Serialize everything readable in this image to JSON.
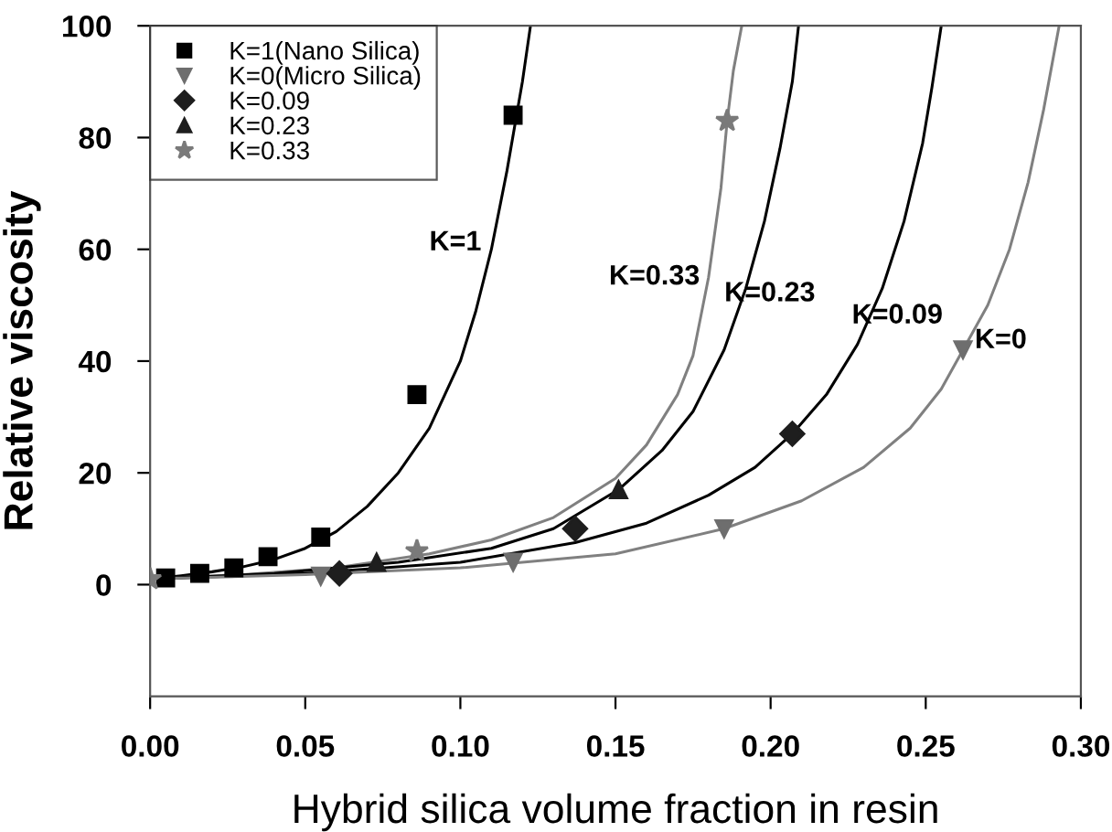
{
  "chart_data": {
    "type": "scatter",
    "xlabel": "Hybrid silica volume fraction in resin",
    "ylabel": "Relative viscosity",
    "xlim": [
      0,
      0.3
    ],
    "xticks": [
      {
        "value": 0,
        "label": "0.00"
      },
      0.05,
      {
        "value": 0.1,
        "label": "0.10"
      },
      0.15,
      {
        "value": 0.2,
        "label": "0.20"
      },
      0.25,
      {
        "value": 0.3,
        "label": "0.30"
      }
    ],
    "ylim": [
      -20,
      100
    ],
    "yticks": [
      0,
      20,
      40,
      60,
      80,
      100
    ],
    "grid": false,
    "legend": "top left",
    "series": [
      {
        "name": "K=1(Nano Silica)",
        "marker": "square",
        "color": "#000000",
        "x": [
          0.005,
          0.016,
          0.027,
          0.038,
          0.055,
          0.086,
          0.117
        ],
        "values": [
          1.2,
          2,
          3,
          5,
          8.5,
          34,
          84
        ]
      },
      {
        "name": "K=0(Micro Silica)",
        "marker": "triangle_down",
        "color": "#6e6e6e",
        "x": [
          0.055,
          0.117,
          0.185,
          0.262
        ],
        "values": [
          1.5,
          4,
          10,
          42
        ]
      },
      {
        "name": "K=0.09",
        "marker": "diamond",
        "color": "#1e1e1e",
        "x": [
          0.061,
          0.137,
          0.207
        ],
        "values": [
          2,
          10,
          27
        ]
      },
      {
        "name": "K=0.23",
        "marker": "triangle",
        "color": "#1e1e1e",
        "x": [
          0.073,
          0.151
        ],
        "values": [
          4,
          17
        ]
      },
      {
        "name": "K=0.33",
        "marker": "star",
        "color": "#7a7a7a",
        "x": [
          0,
          0.086,
          0.186
        ],
        "values": [
          1,
          6,
          83
        ]
      },
      {
        "type": "line",
        "color": "#000000",
        "x": [
          0,
          0.01,
          0.02,
          0.03,
          0.04,
          0.05,
          0.06,
          0.07,
          0.08,
          0.09,
          0.1,
          0.105,
          0.11,
          0.115,
          0.12,
          0.1226
        ],
        "values": [
          1,
          1.6,
          2.3,
          3.2,
          4.5,
          6.5,
          9.5,
          14,
          20,
          28,
          40,
          49,
          60,
          74,
          90,
          100
        ]
      },
      {
        "type": "line",
        "color": "#808080",
        "x": [
          0,
          0.03,
          0.06,
          0.09,
          0.11,
          0.13,
          0.15,
          0.16,
          0.17,
          0.175,
          0.18,
          0.184,
          0.186,
          0.188,
          0.1907
        ],
        "values": [
          1,
          1.8,
          3,
          5.5,
          8,
          12,
          19,
          25,
          34,
          41,
          55,
          71,
          83,
          92,
          100
        ]
      },
      {
        "type": "line",
        "color": "#000000",
        "x": [
          0,
          0.04,
          0.08,
          0.11,
          0.13,
          0.151,
          0.165,
          0.175,
          0.185,
          0.192,
          0.198,
          0.203,
          0.207,
          0.209
        ],
        "values": [
          1,
          2,
          4,
          6.5,
          10,
          17,
          24,
          31,
          42,
          53,
          65,
          78,
          90,
          100
        ]
      },
      {
        "type": "line",
        "color": "#000000",
        "x": [
          0,
          0.05,
          0.1,
          0.137,
          0.16,
          0.18,
          0.195,
          0.207,
          0.218,
          0.228,
          0.236,
          0.243,
          0.249,
          0.252,
          0.255
        ],
        "values": [
          1,
          2,
          4,
          7.5,
          11,
          16,
          21,
          27,
          34,
          43,
          53,
          65,
          79,
          89,
          100
        ]
      },
      {
        "type": "line",
        "color": "#808080",
        "x": [
          0,
          0.05,
          0.1,
          0.15,
          0.185,
          0.21,
          0.23,
          0.245,
          0.255,
          0.262,
          0.27,
          0.277,
          0.283,
          0.288,
          0.293
        ],
        "values": [
          1,
          1.8,
          3,
          5.5,
          10,
          15,
          21,
          28,
          35,
          42,
          50,
          60,
          72,
          85,
          100
        ]
      }
    ],
    "annotations": [
      "K=1",
      "K=0.33",
      "K=0.23",
      "K=0.09",
      "K=0"
    ]
  }
}
